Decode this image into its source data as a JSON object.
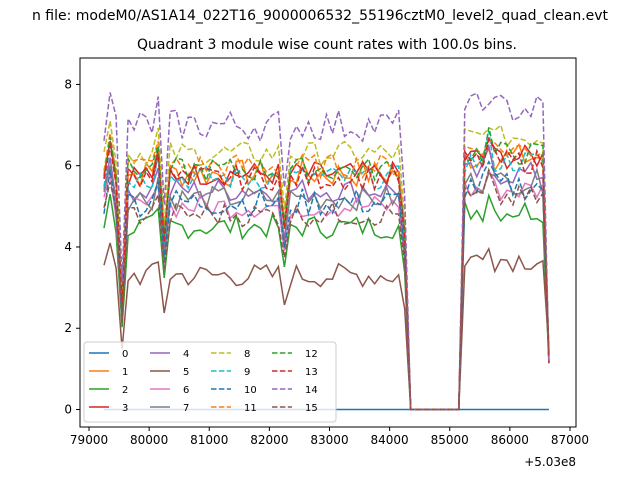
{
  "suptitle": "n file: modeM0/AS1A14_022T16_9000006532_55196cztM0_level2_quad_clean.evt",
  "chart_data": {
    "type": "line",
    "title": "Quadrant 3 module wise count rates with 100.0s bins.",
    "xlabel": "",
    "ylabel": "",
    "x_offset_label": "+5.03e8",
    "xlim": [
      78850,
      87100
    ],
    "ylim": [
      -0.43,
      8.65
    ],
    "x_ticks": [
      79000,
      80000,
      81000,
      82000,
      83000,
      84000,
      85000,
      86000,
      87000
    ],
    "x_tick_labels": [
      "79000",
      "80000",
      "81000",
      "82000",
      "83000",
      "84000",
      "85000",
      "86000",
      "87000"
    ],
    "y_ticks": [
      0,
      2,
      4,
      6,
      8
    ],
    "y_tick_labels": [
      "0",
      "2",
      "4",
      "6",
      "8"
    ],
    "grid": false,
    "legend_position": "lower-left",
    "legend_columns": 4,
    "segment1": {
      "x_start": 79250,
      "step": 100,
      "count": 51
    },
    "gap": {
      "x": [
        84350,
        85150
      ]
    },
    "segment2": {
      "x_start": 85250,
      "step": 100,
      "count": 15
    },
    "series": [
      {
        "name": "0",
        "color": "#1f77b4",
        "dash": "solid",
        "level": 0.0,
        "var": 0.0
      },
      {
        "name": "1",
        "color": "#ff7f0e",
        "dash": "solid",
        "level": 5.8,
        "var": 0.35
      },
      {
        "name": "2",
        "color": "#2ca02c",
        "dash": "solid",
        "level": 4.5,
        "var": 0.3
      },
      {
        "name": "3",
        "color": "#d62728",
        "dash": "solid",
        "level": 5.8,
        "var": 0.3
      },
      {
        "name": "4",
        "color": "#9467bd",
        "dash": "solid",
        "level": 5.4,
        "var": 0.3
      },
      {
        "name": "5",
        "color": "#8c564b",
        "dash": "solid",
        "level": 3.3,
        "var": 0.3
      },
      {
        "name": "6",
        "color": "#e377c2",
        "dash": "solid",
        "level": 5.0,
        "var": 0.3
      },
      {
        "name": "7",
        "color": "#7f7f7f",
        "dash": "solid",
        "level": 5.2,
        "var": 0.3
      },
      {
        "name": "8",
        "color": "#bcbd22",
        "dash": "dashed",
        "level": 6.3,
        "var": 0.3
      },
      {
        "name": "9",
        "color": "#17becf",
        "dash": "dashed",
        "level": 5.7,
        "var": 0.3
      },
      {
        "name": "10",
        "color": "#1f77b4",
        "dash": "dashed",
        "level": 5.1,
        "var": 0.35
      },
      {
        "name": "11",
        "color": "#ff7f0e",
        "dash": "dashed",
        "level": 6.0,
        "var": 0.3
      },
      {
        "name": "12",
        "color": "#2ca02c",
        "dash": "dashed",
        "level": 5.9,
        "var": 0.3
      },
      {
        "name": "13",
        "color": "#d62728",
        "dash": "dashed",
        "level": 5.7,
        "var": 0.3
      },
      {
        "name": "14",
        "color": "#9467bd",
        "dash": "dashed",
        "level": 7.0,
        "var": 0.4
      },
      {
        "name": "15",
        "color": "#8c564b",
        "dash": "dashed",
        "level": 4.8,
        "var": 0.3
      }
    ]
  }
}
